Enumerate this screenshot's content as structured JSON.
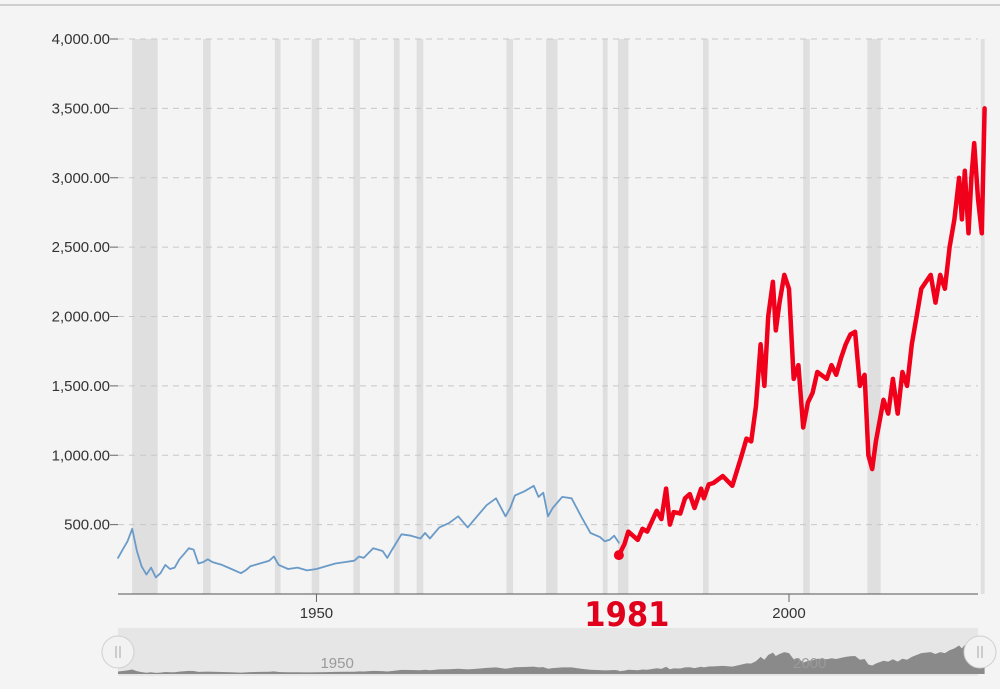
{
  "chart_data": {
    "type": "line",
    "title": "",
    "xlabel": "",
    "ylabel": "",
    "xlim": [
      1929,
      2020
    ],
    "ylim": [
      0,
      4000
    ],
    "y_ticks": [
      500,
      1000,
      1500,
      2000,
      2500,
      3000,
      3500,
      4000
    ],
    "y_tick_labels": [
      "500.00",
      "1,000.00",
      "1,500.00",
      "2,000.00",
      "2,500.00",
      "3,000.00",
      "3,500.00",
      "4,000.00"
    ],
    "x_ticks": [
      1950,
      2000
    ],
    "x_tick_labels": [
      "1950",
      "2000"
    ],
    "highlight_label": "1981",
    "highlight_x": 1982,
    "grid": "horizontal-dashed",
    "recession_bands": [
      [
        1930.5,
        1933.2
      ],
      [
        1938.0,
        1938.8
      ],
      [
        1945.6,
        1946.2
      ],
      [
        1949.5,
        1950.3
      ],
      [
        1953.9,
        1954.6
      ],
      [
        1958.2,
        1958.8
      ],
      [
        1960.6,
        1961.3
      ],
      [
        1970.1,
        1970.8
      ],
      [
        1974.3,
        1975.5
      ],
      [
        1980.3,
        1980.8
      ],
      [
        1981.9,
        1983.0
      ],
      [
        1990.9,
        1991.5
      ],
      [
        2001.5,
        2002.2
      ],
      [
        2008.3,
        2009.7
      ],
      [
        2020.3,
        2020.7
      ]
    ],
    "series": [
      {
        "color": "#6a9bc8",
        "x": [
          1929.0,
          1929.5,
          1930.0,
          1930.5,
          1931.0,
          1931.5,
          1932.0,
          1932.5,
          1933.0,
          1933.5,
          1934.0,
          1934.5,
          1935.0,
          1935.5,
          1936.0,
          1936.5,
          1937.0,
          1937.5,
          1938.0,
          1938.5,
          1939.0,
          1940.0,
          1941.0,
          1942.0,
          1942.5,
          1943.0,
          1944.0,
          1945.0,
          1945.5,
          1946.0,
          1947.0,
          1948.0,
          1949.0,
          1950.0,
          1951.0,
          1952.0,
          1953.0,
          1954.0,
          1954.5,
          1955.0,
          1956.0,
          1957.0,
          1957.5,
          1958.0,
          1959.0,
          1960.0,
          1961.0,
          1961.5,
          1962.0,
          1963.0,
          1964.0,
          1965.0,
          1966.0,
          1967.0,
          1968.0,
          1969.0,
          1970.0,
          1970.5,
          1971.0,
          1972.0,
          1973.0,
          1973.5,
          1974.0,
          1974.5,
          1975.0,
          1976.0,
          1977.0,
          1978.0,
          1979.0,
          1980.0,
          1980.5,
          1981.0,
          1981.5,
          1982.0
        ],
        "y": [
          260,
          320,
          380,
          470,
          310,
          200,
          140,
          190,
          120,
          150,
          210,
          180,
          190,
          250,
          290,
          330,
          320,
          220,
          230,
          250,
          230,
          210,
          180,
          150,
          170,
          200,
          220,
          240,
          270,
          210,
          180,
          190,
          170,
          180,
          200,
          220,
          230,
          240,
          270,
          260,
          330,
          310,
          260,
          320,
          430,
          420,
          400,
          440,
          400,
          480,
          510,
          560,
          480,
          560,
          640,
          690,
          560,
          620,
          710,
          740,
          780,
          700,
          730,
          560,
          620,
          700,
          690,
          560,
          440,
          410,
          380,
          390,
          420,
          370
        ]
      },
      {
        "color": "#f0001a",
        "x": [
          1982.0,
          1982.6,
          1983.0,
          1984.0,
          1984.5,
          1985.0,
          1986.0,
          1986.5,
          1987.0,
          1987.4,
          1987.8,
          1988.5,
          1989.0,
          1989.5,
          1990.0,
          1990.7,
          1991.0,
          1991.5,
          1992.0,
          1993.0,
          1994.0,
          1995.0,
          1995.5,
          1996.0,
          1996.5,
          1997.0,
          1997.4,
          1997.8,
          1998.3,
          1998.6,
          1999.0,
          1999.5,
          2000.0,
          2000.5,
          2001.0,
          2001.5,
          2002.0,
          2002.5,
          2003.0,
          2004.0,
          2004.5,
          2005.0,
          2005.5,
          2006.0,
          2006.5,
          2007.0,
          2007.5,
          2008.0,
          2008.4,
          2008.8,
          2009.2,
          2009.6,
          2010.0,
          2010.5,
          2011.0,
          2011.5,
          2012.0,
          2012.5,
          2013.0,
          2013.5,
          2014.0,
          2015.0,
          2015.5,
          2016.0,
          2016.5,
          2017.0,
          2017.5,
          2018.0,
          2018.3,
          2018.6,
          2019.0,
          2019.3,
          2019.6,
          2020.0,
          2020.4,
          2020.7
        ],
        "y": [
          280,
          360,
          450,
          390,
          470,
          450,
          600,
          540,
          760,
          500,
          590,
          580,
          690,
          720,
          620,
          760,
          690,
          790,
          800,
          850,
          780,
          1000,
          1120,
          1100,
          1350,
          1800,
          1500,
          2000,
          2250,
          1900,
          2100,
          2300,
          2200,
          1550,
          1650,
          1200,
          1380,
          1450,
          1600,
          1550,
          1650,
          1580,
          1700,
          1800,
          1870,
          1890,
          1500,
          1580,
          1000,
          900,
          1100,
          1250,
          1400,
          1300,
          1550,
          1300,
          1600,
          1500,
          1800,
          2000,
          2200,
          2300,
          2100,
          2300,
          2200,
          2500,
          2700,
          3000,
          2700,
          3050,
          2600,
          3000,
          3250,
          2850,
          2600,
          3500
        ]
      }
    ]
  }
}
